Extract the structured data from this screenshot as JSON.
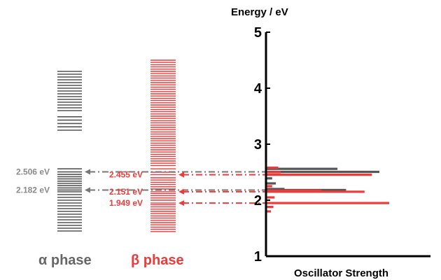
{
  "chart_data": {
    "type": "bar",
    "orientation": "horizontal",
    "title": "Energy / eV",
    "xlabel": "Oscillator Strength",
    "ylabel": "Energy / eV",
    "ylim": [
      1,
      5
    ],
    "yticks": [
      1,
      2,
      3,
      4,
      5
    ],
    "grid": false,
    "legend": "bottom",
    "series": [
      {
        "name": "α phase",
        "color": "#555555",
        "levels": [
          1.45,
          1.5,
          1.55,
          1.6,
          1.65,
          1.7,
          1.75,
          1.8,
          1.85,
          1.9,
          1.95,
          2.0,
          2.05,
          2.1,
          2.15,
          2.182,
          2.22,
          2.26,
          2.3,
          2.34,
          2.38,
          2.42,
          2.46,
          2.506,
          2.56,
          3.25,
          3.31,
          3.37,
          3.43,
          3.49,
          3.6,
          3.65,
          3.7,
          3.75,
          3.8,
          3.85,
          3.9,
          3.95,
          4.0,
          4.05,
          4.1,
          4.15,
          4.2,
          4.25,
          4.3
        ],
        "oscillator_strength": [
          {
            "energy": 2.182,
            "strength": 0.65
          },
          {
            "energy": 2.2,
            "strength": 0.15
          },
          {
            "energy": 2.3,
            "strength": 0.08
          },
          {
            "energy": 2.39,
            "strength": 0.05
          },
          {
            "energy": 2.506,
            "strength": 0.92
          },
          {
            "energy": 2.56,
            "strength": 0.58
          }
        ]
      },
      {
        "name": "β phase",
        "color": "#ea3c3c",
        "levels": [
          1.44,
          1.48,
          1.52,
          1.56,
          1.6,
          1.64,
          1.68,
          1.72,
          1.76,
          1.8,
          1.84,
          1.88,
          1.92,
          1.949,
          2.0,
          2.04,
          2.08,
          2.12,
          2.151,
          2.2,
          2.24,
          2.28,
          2.32,
          2.36,
          2.4,
          2.455,
          2.5,
          2.56,
          2.62,
          2.66,
          2.7,
          2.74,
          2.78,
          2.82,
          2.86,
          2.9,
          2.94,
          2.98,
          3.02,
          3.06,
          3.1,
          3.14,
          3.18,
          3.22,
          3.26,
          3.3,
          3.34,
          3.38,
          3.42,
          3.46,
          3.5,
          3.54,
          3.58,
          3.62,
          3.66,
          3.7,
          3.74,
          3.78,
          3.82,
          3.86,
          3.9,
          3.94,
          3.98,
          4.02,
          4.06,
          4.1,
          4.14,
          4.18,
          4.22,
          4.26,
          4.3,
          4.34,
          4.38,
          4.42,
          4.46,
          4.5
        ],
        "oscillator_strength": [
          {
            "energy": 1.8,
            "strength": 0.04
          },
          {
            "energy": 1.88,
            "strength": 0.06
          },
          {
            "energy": 1.949,
            "strength": 1.0
          },
          {
            "energy": 2.05,
            "strength": 0.07
          },
          {
            "energy": 2.151,
            "strength": 0.8
          },
          {
            "energy": 2.17,
            "strength": 0.45
          },
          {
            "energy": 2.25,
            "strength": 0.05
          },
          {
            "energy": 2.455,
            "strength": 0.86
          },
          {
            "energy": 2.5,
            "strength": 0.12
          },
          {
            "energy": 2.58,
            "strength": 0.1
          }
        ]
      }
    ],
    "annotations": [
      {
        "text": "2.506 eV",
        "energy": 2.506,
        "series": "α phase",
        "color": "#8a8a8a"
      },
      {
        "text": "2.182 eV",
        "energy": 2.182,
        "series": "α phase",
        "color": "#8a8a8a"
      },
      {
        "text": "2.455 eV",
        "energy": 2.455,
        "series": "β phase",
        "color": "#ea3c3c"
      },
      {
        "text": "2.151 eV",
        "energy": 2.151,
        "series": "β phase",
        "color": "#ea3c3c"
      },
      {
        "text": "1.949 eV",
        "energy": 1.949,
        "series": "β phase",
        "color": "#ea3c3c"
      }
    ],
    "legend_labels": {
      "alpha": "α phase",
      "beta": "β phase"
    }
  },
  "colors": {
    "alpha": "#555555",
    "alpha_text": "#8a8a8a",
    "beta": "#ea3c3c",
    "axis": "#000000"
  }
}
